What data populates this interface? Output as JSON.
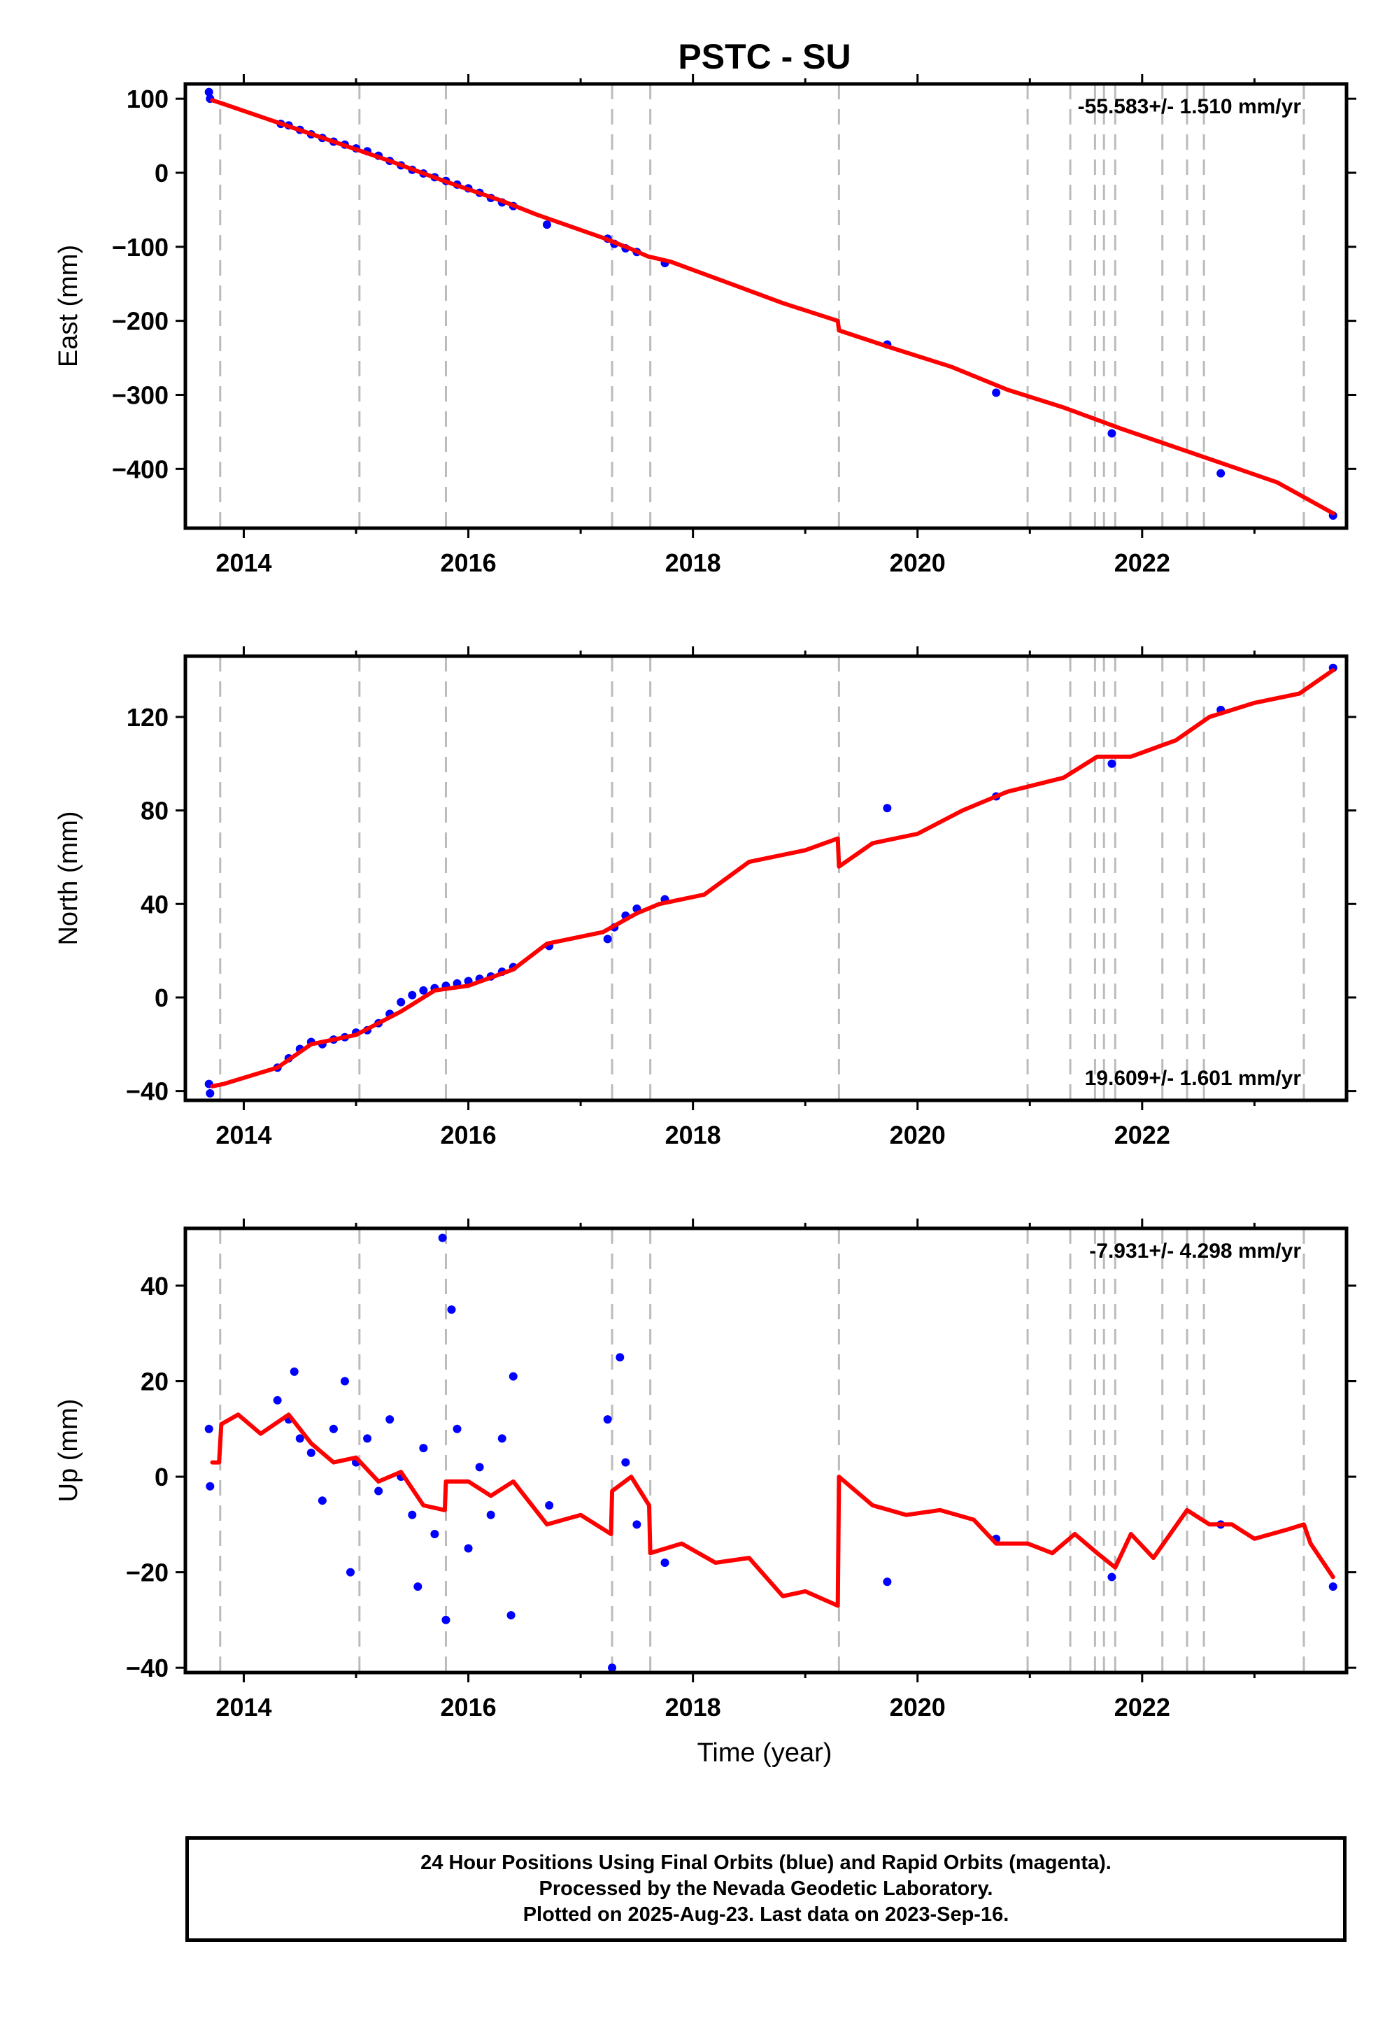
{
  "figure_title": "PSTC - SU",
  "x_axis_label": "Time (year)",
  "footer": {
    "line1": "24 Hour Positions Using Final Orbits (blue) and Rapid Orbits (magenta).",
    "line2": "Processed by the Nevada Geodetic Laboratory.",
    "line3": "Plotted on 2025-Aug-23. Last data on 2023-Sep-16."
  },
  "colors": {
    "data_points": "#0000ff",
    "model_line": "#ff0000",
    "event_lines": "#bbbbbb",
    "frame": "#000000"
  },
  "chart_data": [
    {
      "type": "scatter",
      "component": "east",
      "ylabel": "East (mm)",
      "rate_text": "-55.583+/- 1.510 mm/yr",
      "rate_position": "top-right",
      "xlim": [
        2013.48,
        2023.82
      ],
      "ylim": [
        -480,
        120
      ],
      "x_ticks": [
        2014,
        2016,
        2018,
        2020,
        2022
      ],
      "y_ticks": [
        -400,
        -300,
        -200,
        -100,
        0,
        100
      ],
      "event_lines": [
        2013.79,
        2015.03,
        2015.8,
        2017.28,
        2017.62,
        2019.3,
        2020.98,
        2021.36,
        2021.58,
        2021.66,
        2021.76,
        2022.18,
        2022.4,
        2022.55,
        2023.44
      ],
      "data_points": [
        [
          2013.69,
          109
        ],
        [
          2013.7,
          100
        ],
        [
          2014.33,
          66
        ],
        [
          2014.4,
          64
        ],
        [
          2014.5,
          58
        ],
        [
          2014.6,
          52
        ],
        [
          2014.7,
          47
        ],
        [
          2014.8,
          42
        ],
        [
          2014.9,
          38
        ],
        [
          2015.0,
          33
        ],
        [
          2015.1,
          29
        ],
        [
          2015.2,
          23
        ],
        [
          2015.3,
          16
        ],
        [
          2015.4,
          10
        ],
        [
          2015.5,
          4
        ],
        [
          2015.6,
          -1
        ],
        [
          2015.7,
          -6
        ],
        [
          2015.8,
          -11
        ],
        [
          2015.9,
          -16
        ],
        [
          2016.0,
          -21
        ],
        [
          2016.1,
          -27
        ],
        [
          2016.2,
          -34
        ],
        [
          2016.3,
          -40
        ],
        [
          2016.4,
          -45
        ],
        [
          2016.7,
          -70
        ],
        [
          2017.24,
          -89
        ],
        [
          2017.3,
          -96
        ],
        [
          2017.4,
          -102
        ],
        [
          2017.5,
          -107
        ],
        [
          2017.75,
          -122
        ],
        [
          2019.73,
          -232
        ],
        [
          2020.7,
          -297
        ],
        [
          2021.73,
          -352
        ],
        [
          2022.7,
          -406
        ],
        [
          2023.7,
          -463
        ]
      ],
      "model": [
        [
          2013.72,
          98
        ],
        [
          2013.82,
          93
        ],
        [
          2014.3,
          68
        ],
        [
          2014.8,
          42
        ],
        [
          2015.3,
          16
        ],
        [
          2015.8,
          -12
        ],
        [
          2016.3,
          -38
        ],
        [
          2016.6,
          -56
        ],
        [
          2017.2,
          -88
        ],
        [
          2017.45,
          -103
        ],
        [
          2017.6,
          -113
        ],
        [
          2017.8,
          -120
        ],
        [
          2018.3,
          -148
        ],
        [
          2018.8,
          -176
        ],
        [
          2019.29,
          -200
        ],
        [
          2019.3,
          -213
        ],
        [
          2019.8,
          -238
        ],
        [
          2020.3,
          -262
        ],
        [
          2020.8,
          -293
        ],
        [
          2021.3,
          -317
        ],
        [
          2021.8,
          -345
        ],
        [
          2022.3,
          -371
        ],
        [
          2022.8,
          -397
        ],
        [
          2023.2,
          -418
        ],
        [
          2023.7,
          -460
        ]
      ]
    },
    {
      "type": "scatter",
      "component": "north",
      "ylabel": "North (mm)",
      "rate_text": "19.609+/- 1.601 mm/yr",
      "rate_position": "bottom-right",
      "xlim": [
        2013.48,
        2023.82
      ],
      "ylim": [
        -44,
        146
      ],
      "x_ticks": [
        2014,
        2016,
        2018,
        2020,
        2022
      ],
      "y_ticks": [
        -40,
        0,
        40,
        80,
        120
      ],
      "event_lines": [
        2013.79,
        2015.03,
        2015.8,
        2017.28,
        2017.62,
        2019.3,
        2020.98,
        2021.36,
        2021.58,
        2021.66,
        2021.76,
        2022.18,
        2022.4,
        2022.55,
        2023.44
      ],
      "data_points": [
        [
          2013.69,
          -37
        ],
        [
          2013.7,
          -41
        ],
        [
          2014.3,
          -30
        ],
        [
          2014.4,
          -26
        ],
        [
          2014.5,
          -22
        ],
        [
          2014.6,
          -19
        ],
        [
          2014.7,
          -20
        ],
        [
          2014.8,
          -18
        ],
        [
          2014.9,
          -17
        ],
        [
          2015.0,
          -15
        ],
        [
          2015.1,
          -14
        ],
        [
          2015.2,
          -11
        ],
        [
          2015.3,
          -7
        ],
        [
          2015.4,
          -2
        ],
        [
          2015.5,
          1
        ],
        [
          2015.6,
          3
        ],
        [
          2015.7,
          4
        ],
        [
          2015.8,
          5
        ],
        [
          2015.9,
          6
        ],
        [
          2016.0,
          7
        ],
        [
          2016.1,
          8
        ],
        [
          2016.2,
          9
        ],
        [
          2016.3,
          11
        ],
        [
          2016.4,
          13
        ],
        [
          2016.72,
          22
        ],
        [
          2017.24,
          25
        ],
        [
          2017.3,
          30
        ],
        [
          2017.4,
          35
        ],
        [
          2017.5,
          38
        ],
        [
          2017.75,
          42
        ],
        [
          2019.73,
          81
        ],
        [
          2020.7,
          86
        ],
        [
          2021.73,
          100
        ],
        [
          2022.7,
          123
        ],
        [
          2023.7,
          141
        ]
      ],
      "model": [
        [
          2013.72,
          -38
        ],
        [
          2013.82,
          -37
        ],
        [
          2014.3,
          -30
        ],
        [
          2014.6,
          -20
        ],
        [
          2015.0,
          -16
        ],
        [
          2015.4,
          -6
        ],
        [
          2015.7,
          3
        ],
        [
          2016.0,
          5
        ],
        [
          2016.4,
          12
        ],
        [
          2016.7,
          23
        ],
        [
          2017.2,
          28
        ],
        [
          2017.5,
          36
        ],
        [
          2017.7,
          40
        ],
        [
          2018.1,
          44
        ],
        [
          2018.5,
          58
        ],
        [
          2019.0,
          63
        ],
        [
          2019.29,
          68
        ],
        [
          2019.3,
          56
        ],
        [
          2019.6,
          66
        ],
        [
          2020.0,
          70
        ],
        [
          2020.4,
          80
        ],
        [
          2020.8,
          88
        ],
        [
          2021.3,
          94
        ],
        [
          2021.6,
          103
        ],
        [
          2021.9,
          103
        ],
        [
          2022.3,
          110
        ],
        [
          2022.6,
          120
        ],
        [
          2023.0,
          126
        ],
        [
          2023.4,
          130
        ],
        [
          2023.7,
          140
        ]
      ]
    },
    {
      "type": "scatter",
      "component": "up",
      "ylabel": "Up (mm)",
      "rate_text": "-7.931+/- 4.298 mm/yr",
      "rate_position": "top-right",
      "xlim": [
        2013.48,
        2023.82
      ],
      "ylim": [
        -41,
        52
      ],
      "x_ticks": [
        2014,
        2016,
        2018,
        2020,
        2022
      ],
      "y_ticks": [
        -40,
        -20,
        0,
        20,
        40
      ],
      "event_lines": [
        2013.79,
        2015.03,
        2015.8,
        2017.28,
        2017.62,
        2019.3,
        2020.98,
        2021.36,
        2021.58,
        2021.66,
        2021.76,
        2022.18,
        2022.4,
        2022.55,
        2023.44
      ],
      "data_points": [
        [
          2013.69,
          10
        ],
        [
          2013.7,
          -2
        ],
        [
          2014.3,
          16
        ],
        [
          2014.4,
          12
        ],
        [
          2014.45,
          22
        ],
        [
          2014.5,
          8
        ],
        [
          2014.6,
          5
        ],
        [
          2014.7,
          -5
        ],
        [
          2014.8,
          10
        ],
        [
          2014.9,
          20
        ],
        [
          2014.95,
          -20
        ],
        [
          2015.0,
          3
        ],
        [
          2015.1,
          8
        ],
        [
          2015.2,
          -3
        ],
        [
          2015.3,
          12
        ],
        [
          2015.4,
          0
        ],
        [
          2015.5,
          -8
        ],
        [
          2015.55,
          -23
        ],
        [
          2015.6,
          6
        ],
        [
          2015.7,
          -12
        ],
        [
          2015.77,
          50
        ],
        [
          2015.8,
          -30
        ],
        [
          2015.85,
          35
        ],
        [
          2015.9,
          10
        ],
        [
          2016.0,
          -15
        ],
        [
          2016.1,
          2
        ],
        [
          2016.2,
          -8
        ],
        [
          2016.3,
          8
        ],
        [
          2016.38,
          -29
        ],
        [
          2016.4,
          21
        ],
        [
          2016.72,
          -6
        ],
        [
          2017.24,
          12
        ],
        [
          2017.28,
          -40
        ],
        [
          2017.35,
          25
        ],
        [
          2017.4,
          3
        ],
        [
          2017.5,
          -10
        ],
        [
          2017.75,
          -18
        ],
        [
          2019.73,
          -22
        ],
        [
          2020.7,
          -13
        ],
        [
          2021.73,
          -21
        ],
        [
          2022.7,
          -10
        ],
        [
          2023.7,
          -23
        ]
      ],
      "model": [
        [
          2013.72,
          3
        ],
        [
          2013.78,
          3
        ],
        [
          2013.8,
          11
        ],
        [
          2013.95,
          13
        ],
        [
          2014.15,
          9
        ],
        [
          2014.4,
          13
        ],
        [
          2014.6,
          7
        ],
        [
          2014.8,
          3
        ],
        [
          2015.0,
          4
        ],
        [
          2015.2,
          -1
        ],
        [
          2015.4,
          1
        ],
        [
          2015.6,
          -6
        ],
        [
          2015.79,
          -7
        ],
        [
          2015.8,
          -1
        ],
        [
          2016.0,
          -1
        ],
        [
          2016.2,
          -4
        ],
        [
          2016.4,
          -1
        ],
        [
          2016.7,
          -10
        ],
        [
          2017.0,
          -8
        ],
        [
          2017.27,
          -12
        ],
        [
          2017.28,
          -3
        ],
        [
          2017.45,
          0
        ],
        [
          2017.61,
          -6
        ],
        [
          2017.62,
          -16
        ],
        [
          2017.9,
          -14
        ],
        [
          2018.2,
          -18
        ],
        [
          2018.5,
          -17
        ],
        [
          2018.8,
          -25
        ],
        [
          2019.0,
          -24
        ],
        [
          2019.29,
          -27
        ],
        [
          2019.3,
          0
        ],
        [
          2019.6,
          -6
        ],
        [
          2019.9,
          -8
        ],
        [
          2020.2,
          -7
        ],
        [
          2020.5,
          -9
        ],
        [
          2020.7,
          -14
        ],
        [
          2020.98,
          -14
        ],
        [
          2021.2,
          -16
        ],
        [
          2021.4,
          -12
        ],
        [
          2021.6,
          -16
        ],
        [
          2021.76,
          -19
        ],
        [
          2021.9,
          -12
        ],
        [
          2022.1,
          -17
        ],
        [
          2022.4,
          -7
        ],
        [
          2022.6,
          -10
        ],
        [
          2022.8,
          -10
        ],
        [
          2023.0,
          -13
        ],
        [
          2023.3,
          -11
        ],
        [
          2023.44,
          -10
        ],
        [
          2023.5,
          -14
        ],
        [
          2023.7,
          -21
        ]
      ]
    }
  ]
}
